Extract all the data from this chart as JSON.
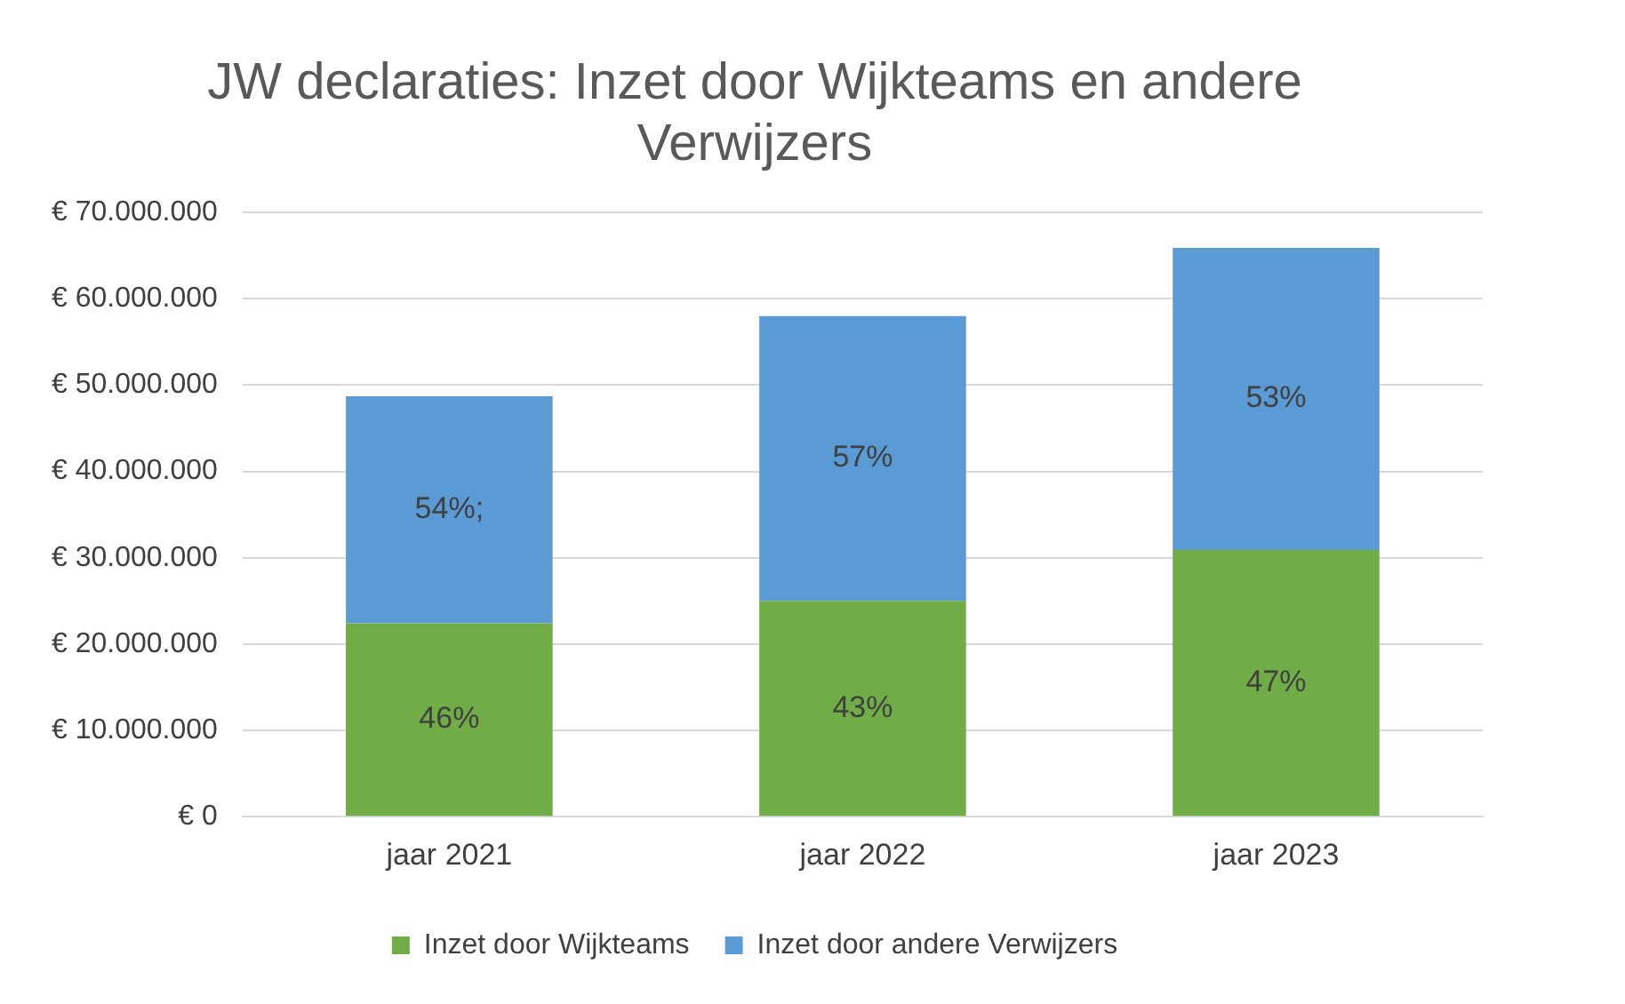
{
  "chart_data": {
    "type": "bar",
    "title": "JW declaraties: Inzet door Wijkteams en andere Verwijzers",
    "stacked": true,
    "categories": [
      "jaar 2021",
      "jaar 2022",
      "jaar 2023"
    ],
    "series": [
      {
        "name": "Inzet door Wijkteams",
        "color": "#70ad47",
        "values": [
          22400000,
          25000000,
          30900000
        ]
      },
      {
        "name": "Inzet door andere Verwijzers",
        "color": "#5b9bd5",
        "values": [
          26300000,
          33000000,
          35000000
        ]
      }
    ],
    "annotations": [
      "46%",
      "43%",
      "47%",
      "54%;",
      "57%",
      "53%"
    ],
    "ylim": [
      0,
      70000000
    ],
    "yticks": [
      {
        "value": 0,
        "label": "€ 0"
      },
      {
        "value": 10000000,
        "label": "€ 10.000.000"
      },
      {
        "value": 20000000,
        "label": "€ 20.000.000"
      },
      {
        "value": 30000000,
        "label": "€ 30.000.000"
      },
      {
        "value": 40000000,
        "label": "€ 40.000.000"
      },
      {
        "value": 50000000,
        "label": "€ 50.000.000"
      },
      {
        "value": 60000000,
        "label": "€ 60.000.000"
      },
      {
        "value": 70000000,
        "label": "€ 70.000.000"
      }
    ],
    "grid": "y",
    "legend": "bottom"
  }
}
